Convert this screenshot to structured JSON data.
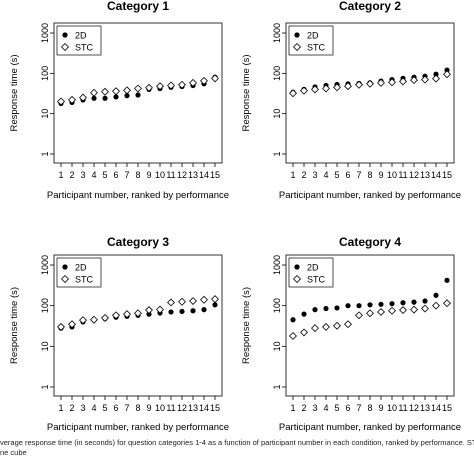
{
  "chart_data": [
    {
      "type": "scatter",
      "title": "Category 1",
      "xlabel": "Participant number, ranked by performance",
      "ylabel": "Response time (s)",
      "x": [
        1,
        2,
        3,
        4,
        5,
        6,
        7,
        8,
        9,
        10,
        11,
        12,
        13,
        14,
        15
      ],
      "yscale": "log",
      "ylim": [
        1,
        1000
      ],
      "yticks": [
        "1",
        "10",
        "100",
        "1000"
      ],
      "legend_position": "top-left",
      "series": [
        {
          "name": "2D",
          "marker": "filled-circle",
          "values": [
            18,
            19,
            22,
            24,
            24,
            26,
            28,
            29,
            40,
            42,
            45,
            47,
            50,
            55,
            80
          ]
        },
        {
          "name": "STC",
          "marker": "open-diamond",
          "values": [
            20,
            22,
            25,
            33,
            35,
            36,
            38,
            42,
            44,
            48,
            50,
            52,
            58,
            65,
            75
          ]
        }
      ]
    },
    {
      "type": "scatter",
      "title": "Category 2",
      "xlabel": "Participant number, ranked by performance",
      "ylabel": "Response time (s)",
      "x": [
        1,
        2,
        3,
        4,
        5,
        6,
        7,
        8,
        9,
        10,
        11,
        12,
        13,
        14,
        15
      ],
      "yscale": "log",
      "ylim": [
        1,
        1000
      ],
      "yticks": [
        "1",
        "10",
        "100",
        "1000"
      ],
      "legend_position": "top-left",
      "series": [
        {
          "name": "2D",
          "marker": "filled-circle",
          "values": [
            34,
            40,
            46,
            50,
            53,
            55,
            56,
            58,
            64,
            70,
            75,
            80,
            85,
            95,
            120
          ]
        },
        {
          "name": "STC",
          "marker": "open-diamond",
          "values": [
            32,
            37,
            40,
            42,
            45,
            48,
            52,
            55,
            58,
            60,
            63,
            68,
            70,
            74,
            95
          ]
        }
      ]
    },
    {
      "type": "scatter",
      "title": "Category 3",
      "xlabel": "Participant number, ranked by performance",
      "ylabel": "Response time (s)",
      "x": [
        1,
        2,
        3,
        4,
        5,
        6,
        7,
        8,
        9,
        10,
        11,
        12,
        13,
        14,
        15
      ],
      "yscale": "log",
      "ylim": [
        1,
        1000
      ],
      "yticks": [
        "1",
        "10",
        "100",
        "1000"
      ],
      "legend_position": "top-left",
      "series": [
        {
          "name": "2D",
          "marker": "filled-circle",
          "values": [
            28,
            30,
            40,
            44,
            48,
            52,
            55,
            58,
            62,
            66,
            70,
            72,
            75,
            80,
            105
          ]
        },
        {
          "name": "STC",
          "marker": "open-diamond",
          "values": [
            30,
            35,
            44,
            45,
            50,
            58,
            62,
            65,
            78,
            80,
            120,
            125,
            130,
            140,
            145
          ]
        }
      ]
    },
    {
      "type": "scatter",
      "title": "Category 4",
      "xlabel": "Participant number, ranked by performance",
      "ylabel": "Response time (s)",
      "x": [
        1,
        2,
        3,
        4,
        5,
        6,
        7,
        8,
        9,
        10,
        11,
        12,
        13,
        14,
        15
      ],
      "yscale": "log",
      "ylim": [
        1,
        1000
      ],
      "yticks": [
        "1",
        "10",
        "100",
        "1000"
      ],
      "legend_position": "top-left",
      "series": [
        {
          "name": "2D",
          "marker": "filled-circle",
          "values": [
            45,
            62,
            80,
            85,
            88,
            100,
            100,
            105,
            108,
            112,
            118,
            122,
            130,
            180,
            420
          ]
        },
        {
          "name": "STC",
          "marker": "open-diamond",
          "values": [
            18,
            22,
            28,
            30,
            32,
            35,
            58,
            65,
            70,
            75,
            78,
            80,
            85,
            100,
            115
          ]
        }
      ]
    }
  ],
  "caption": {
    "line1": "verage response time (in seconds) for question categories 1-4 as a function of participant number in each condition, ranked by performance. STC sta",
    "line2": "ne cube"
  }
}
